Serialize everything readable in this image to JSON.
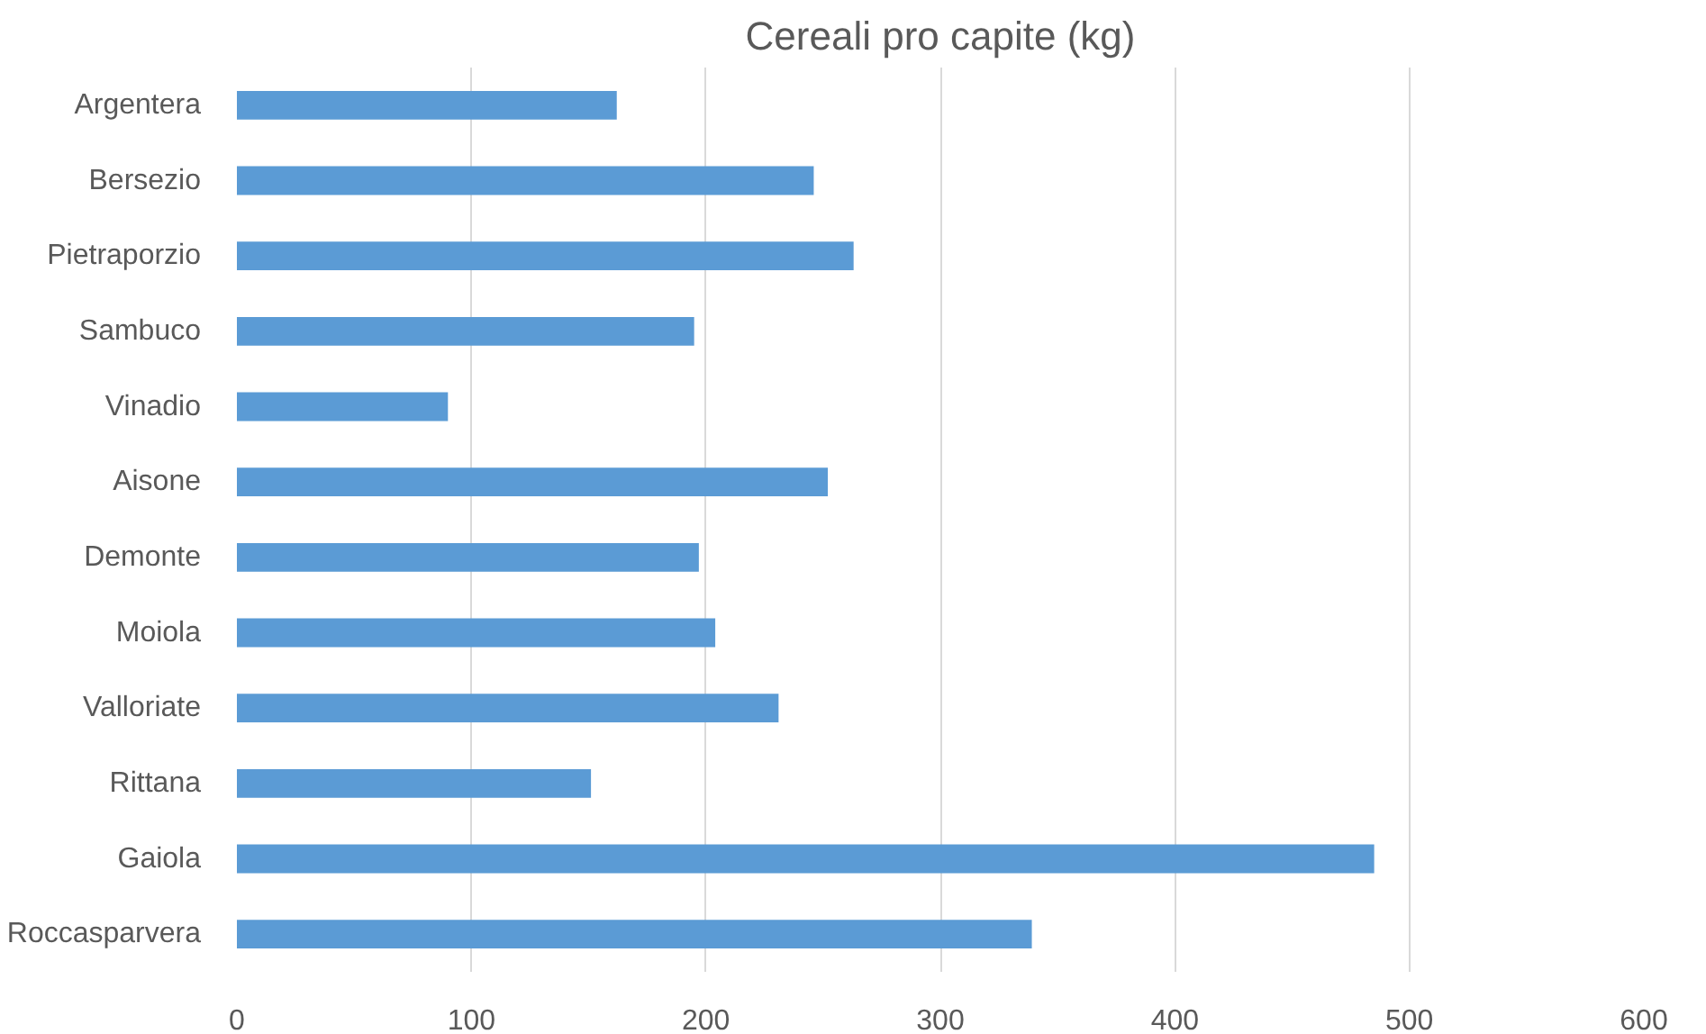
{
  "chart_data": {
    "type": "bar",
    "orientation": "horizontal",
    "title": "Cereali pro capite (kg)",
    "categories": [
      "Argentera",
      "Bersezio",
      "Pietraporzio",
      "Sambuco",
      "Vinadio",
      "Aisone",
      "Demonte",
      "Moiola",
      "Valloriate",
      "Rittana",
      "Gaiola",
      "Roccasparvera"
    ],
    "values": [
      162,
      246,
      263,
      195,
      90,
      252,
      197,
      204,
      231,
      151,
      485,
      339
    ],
    "color": "#5b9bd5",
    "xlim": [
      0,
      600
    ],
    "xticks": [
      0,
      100,
      200,
      300,
      400,
      500,
      600
    ],
    "grid": "x"
  }
}
